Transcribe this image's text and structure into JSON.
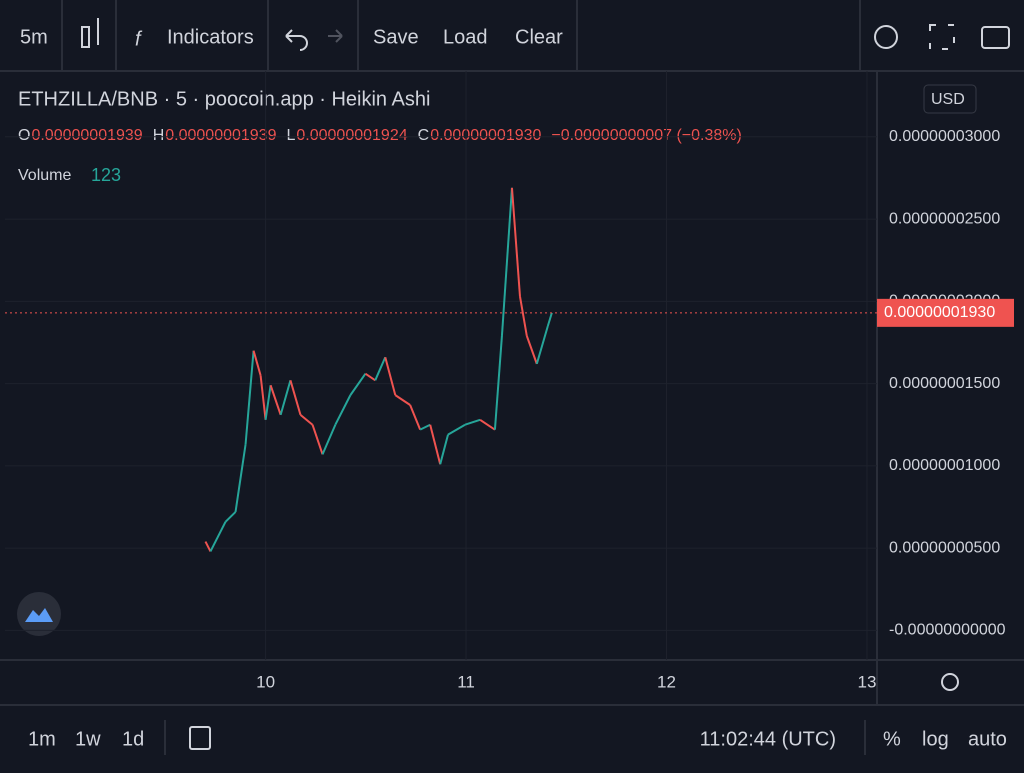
{
  "toolbar": {
    "interval": "5m",
    "indicators": "Indicators",
    "save": "Save",
    "load": "Load",
    "clear": "Clear"
  },
  "legend": {
    "title": "ETHZILLA/BNB · 5 · poocoin.app · Heikin Ashi",
    "currency": "USD",
    "ohlc": [
      {
        "key": "O",
        "value": "0.00000001939"
      },
      {
        "key": "H",
        "value": "0.00000001939"
      },
      {
        "key": "L",
        "value": "0.00000001924"
      },
      {
        "key": "C",
        "value": "0.00000001930"
      }
    ],
    "change": "−0.00000000007 (−0.38%)",
    "volume_label": "Volume",
    "volume_value": "123"
  },
  "chart_data": {
    "type": "line",
    "up_color": "#26a69a",
    "down_color": "#ef5350",
    "grid": true,
    "x": [
      9.7,
      9.725,
      9.8,
      9.85,
      9.9,
      9.94,
      9.975,
      10.0,
      10.025,
      10.075,
      10.124,
      10.174,
      10.234,
      10.284,
      10.348,
      10.423,
      10.498,
      10.547,
      10.597,
      10.647,
      10.721,
      10.771,
      10.821,
      10.871,
      10.91,
      10.995,
      11.07,
      11.144,
      11.179,
      11.229,
      11.269,
      11.303,
      11.353,
      11.408,
      11.428
    ],
    "values": [
      5.4e-09,
      4.8e-09,
      6.6e-09,
      7.2e-09,
      1.13e-08,
      1.7e-08,
      1.55e-08,
      1.28e-08,
      1.49e-08,
      1.31e-08,
      1.52e-08,
      1.31e-08,
      1.25e-08,
      1.07e-08,
      1.25e-08,
      1.43e-08,
      1.56e-08,
      1.52e-08,
      1.66e-08,
      1.43e-08,
      1.37e-08,
      1.22e-08,
      1.25e-08,
      1.01e-08,
      1.19e-08,
      1.25e-08,
      1.28e-08,
      1.22e-08,
      1.79e-08,
      2.69e-08,
      2.03e-08,
      1.79e-08,
      1.62e-08,
      1.85e-08,
      1.93e-08
    ],
    "xlim": [
      8.7,
      13.05
    ],
    "xticks": [
      10,
      11,
      12,
      13
    ],
    "ylim": [
      -1.8e-09,
      3.4e-08
    ],
    "yticks": [
      {
        "value": 3e-08,
        "label": "0.00000003000"
      },
      {
        "value": 2.5e-08,
        "label": "0.00000002500"
      },
      {
        "value": 2e-08,
        "label": "0.00000002000"
      },
      {
        "value": 1.5e-08,
        "label": "0.00000001500"
      },
      {
        "value": 1e-08,
        "label": "0.00000001000"
      },
      {
        "value": 5e-09,
        "label": "0.00000000500"
      },
      {
        "value": 0,
        "label": "-0.00000000000"
      }
    ],
    "price_line": {
      "value": 1.93e-08,
      "label": "0.00000001930",
      "color": "#ef5350"
    }
  },
  "bottom_bar": {
    "ranges": [
      "1m",
      "1w",
      "1d"
    ],
    "clock": "11:02:44 (UTC)",
    "percent": "%",
    "log": "log",
    "auto": "auto"
  }
}
